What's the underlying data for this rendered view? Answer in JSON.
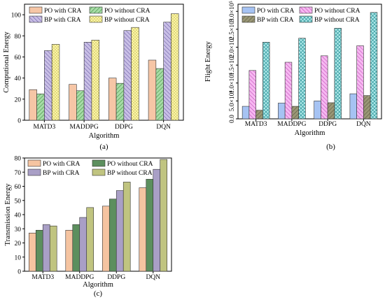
{
  "chart_data": [
    {
      "type": "bar",
      "panel_label": "(a)",
      "xlabel": "Algorithm",
      "ylabel": "Computional Energy",
      "categories": [
        "MATD3",
        "MADDPG",
        "DDPG",
        "DQN"
      ],
      "ylim": [
        0,
        110
      ],
      "yticks": [
        0,
        20,
        40,
        60,
        80,
        100
      ],
      "ytick_labels": [
        "0",
        "20",
        "40",
        "60",
        "80",
        "100"
      ],
      "legend_position": "top",
      "series": [
        {
          "name": "PO with CRA",
          "values": [
            29,
            34,
            40,
            57
          ],
          "color": "#f6c6a6",
          "pattern": "solid"
        },
        {
          "name": "PO without CRA",
          "values": [
            25,
            28,
            35,
            49
          ],
          "color": "#a7dca7",
          "pattern": "diag"
        },
        {
          "name": "BP with CRA",
          "values": [
            66,
            74,
            85,
            93
          ],
          "color": "#c9bfe6",
          "pattern": "diag"
        },
        {
          "name": "BP without CRA",
          "values": [
            72,
            76,
            88,
            101
          ],
          "color": "#fbf5a8",
          "pattern": "dots"
        }
      ]
    },
    {
      "type": "bar",
      "panel_label": "(b)",
      "xlabel": "Algorithm",
      "ylabel": "Flight Energy",
      "categories": [
        "MATD3",
        "MADDPG",
        "DDPG",
        "DQN"
      ],
      "ylim": [
        0,
        320000
      ],
      "yticks": [
        0,
        50000,
        100000,
        150000,
        200000,
        250000,
        300000
      ],
      "ytick_labels": [
        "0.0",
        "5.0×10⁴",
        "1.0×10⁵",
        "1.5×10⁵",
        "2.0×10⁵",
        "2.5×10⁵",
        "3.0×10⁵"
      ],
      "legend_position": "top",
      "series": [
        {
          "name": "PO with CRA",
          "values": [
            35000,
            44000,
            50000,
            70000
          ],
          "color": "#a6c3f3",
          "pattern": "solid"
        },
        {
          "name": "PO without CRA",
          "values": [
            135000,
            158000,
            176000,
            204000
          ],
          "color": "#f6b8f1",
          "pattern": "diag"
        },
        {
          "name": "BP with CRA",
          "values": [
            24000,
            35000,
            45000,
            65000
          ],
          "color": "#9a9776",
          "pattern": "diag"
        },
        {
          "name": "BP without CRA",
          "values": [
            214000,
            225000,
            253000,
            297000
          ],
          "color": "#b3ecec",
          "pattern": "cross"
        }
      ]
    },
    {
      "type": "bar",
      "panel_label": "(c)",
      "xlabel": "Algorithm",
      "ylabel": "Transmission Energy",
      "categories": [
        "MATD3",
        "MADDPG",
        "DDPG",
        "DQN"
      ],
      "ylim": [
        0,
        80
      ],
      "yticks": [
        0,
        10,
        20,
        30,
        40,
        50,
        60,
        70,
        80
      ],
      "ytick_labels": [
        "0",
        "10",
        "20",
        "30",
        "40",
        "50",
        "60",
        "70",
        "80"
      ],
      "legend_position": "top-left",
      "series": [
        {
          "name": "PO with CRA",
          "values": [
            27,
            29,
            46,
            59
          ],
          "color": "#f5c4a1",
          "pattern": "solid"
        },
        {
          "name": "PO without CRA",
          "values": [
            29,
            33,
            51,
            65
          ],
          "color": "#5c8f5e",
          "pattern": "solid"
        },
        {
          "name": "BP with CRA",
          "values": [
            33,
            38,
            57,
            72
          ],
          "color": "#a99fc6",
          "pattern": "solid"
        },
        {
          "name": "BP without CRA",
          "values": [
            32,
            45,
            63,
            79
          ],
          "color": "#c0c480",
          "pattern": "solid"
        }
      ]
    }
  ]
}
